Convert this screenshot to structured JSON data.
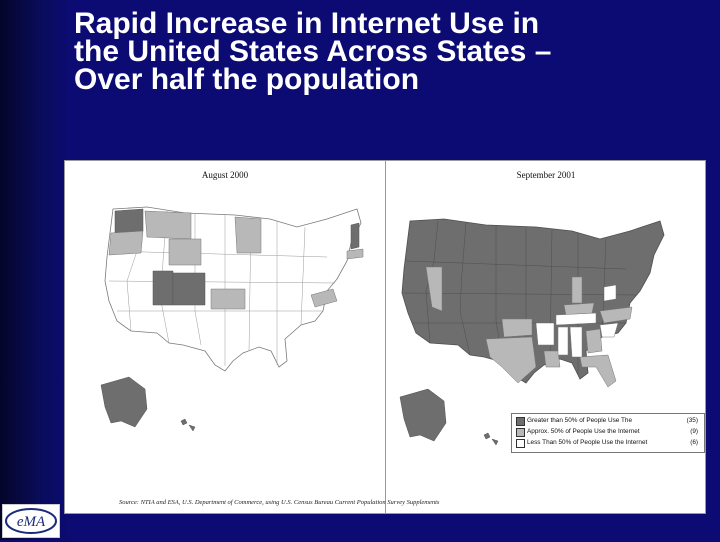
{
  "title": "Rapid Increase in Internet Use in\nthe United States Across States –\nOver half the population",
  "maps": [
    {
      "heading": "August 2000"
    },
    {
      "heading": "September 2001"
    }
  ],
  "legend": {
    "items": [
      {
        "label": "Greater than 50% of People Use The",
        "count": "(35)",
        "color": "#6e6e6e"
      },
      {
        "label": "Approx. 50% of People Use the Internet",
        "count": "(9)",
        "color": "#b8b8b8"
      },
      {
        "label": "Less Than 50% of People Use the Internet",
        "count": "(6)",
        "color": "#ffffff"
      }
    ]
  },
  "source": "Source: NTIA and ESA, U.S. Department of Commerce, using U.S. Census Bureau Current Population Survey Supplements",
  "logo_text": "eMA",
  "colors": {
    "slide_background": "#0b0b73",
    "dark_state": "#6e6e6e",
    "medium_state": "#b8b8b8",
    "light_state": "#ffffff"
  }
}
